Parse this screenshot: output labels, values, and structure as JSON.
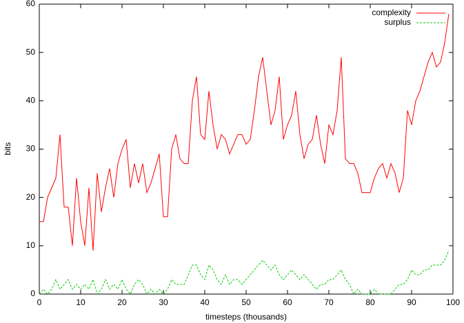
{
  "chart_data": {
    "type": "line",
    "xlabel": "timesteps (thousands)",
    "ylabel": "bits",
    "x": [
      0,
      1,
      2,
      3,
      4,
      5,
      6,
      7,
      8,
      9,
      10,
      11,
      12,
      13,
      14,
      15,
      16,
      17,
      18,
      19,
      20,
      21,
      22,
      23,
      24,
      25,
      26,
      27,
      28,
      29,
      30,
      31,
      32,
      33,
      34,
      35,
      36,
      37,
      38,
      39,
      40,
      41,
      42,
      43,
      44,
      45,
      46,
      47,
      48,
      49,
      50,
      51,
      52,
      53,
      54,
      55,
      56,
      57,
      58,
      59,
      60,
      61,
      62,
      63,
      64,
      65,
      66,
      67,
      68,
      69,
      70,
      71,
      72,
      73,
      74,
      75,
      76,
      77,
      78,
      79,
      80,
      81,
      82,
      83,
      84,
      85,
      86,
      87,
      88,
      89,
      90,
      91,
      92,
      93,
      94,
      95,
      96,
      97,
      98,
      99
    ],
    "series": [
      {
        "name": "complexity",
        "color": "#ff0000",
        "dashed": false,
        "values": [
          15,
          15,
          20,
          22,
          24,
          33,
          18,
          18,
          10,
          24,
          15,
          10,
          22,
          9,
          25,
          17,
          22,
          26,
          20,
          27,
          30,
          32,
          22,
          27,
          23,
          27,
          21,
          23,
          26,
          29,
          16,
          16,
          30,
          33,
          28,
          27,
          27,
          40,
          45,
          33,
          32,
          42,
          35,
          30,
          33,
          32,
          29,
          31,
          33,
          33,
          31,
          32,
          38,
          45,
          49,
          42,
          35,
          38,
          45,
          32,
          35,
          37,
          42,
          33,
          28,
          31,
          32,
          37,
          31,
          27,
          35,
          33,
          38,
          49,
          28,
          27,
          27,
          25,
          21,
          21,
          21,
          24,
          26,
          27,
          24,
          27,
          25,
          21,
          24,
          38,
          35,
          40,
          42,
          45,
          48,
          50,
          47,
          48,
          52,
          58
        ]
      },
      {
        "name": "surplus",
        "color": "#00cc00",
        "dashed": true,
        "values": [
          0,
          1,
          0,
          1,
          3,
          1,
          2,
          3,
          1,
          2,
          1,
          2,
          1,
          3,
          0,
          1,
          3,
          1,
          2,
          1,
          3,
          1,
          0,
          2,
          3,
          2,
          0,
          1,
          0,
          1,
          0,
          1,
          3,
          2,
          2,
          2,
          4,
          6,
          6,
          4,
          3,
          6,
          5,
          3,
          2,
          4,
          2,
          3,
          3,
          2,
          3,
          4,
          5,
          6,
          7,
          6,
          5,
          6,
          4,
          3,
          4,
          5,
          4,
          3,
          4,
          3,
          2,
          1,
          2,
          2,
          3,
          3,
          4,
          5,
          3,
          2,
          0,
          1,
          0,
          0,
          0,
          1,
          0,
          0,
          0,
          0,
          1,
          2,
          2,
          3,
          5,
          4,
          4,
          5,
          5,
          6,
          6,
          6,
          7,
          9
        ]
      }
    ],
    "xlim": [
      0,
      100
    ],
    "xticks": [
      0,
      10,
      20,
      30,
      40,
      50,
      60,
      70,
      80,
      90,
      100
    ],
    "ylim": [
      0,
      60
    ],
    "yticks": [
      0,
      10,
      20,
      30,
      40,
      50,
      60
    ],
    "grid": false,
    "legend": "top-right"
  }
}
